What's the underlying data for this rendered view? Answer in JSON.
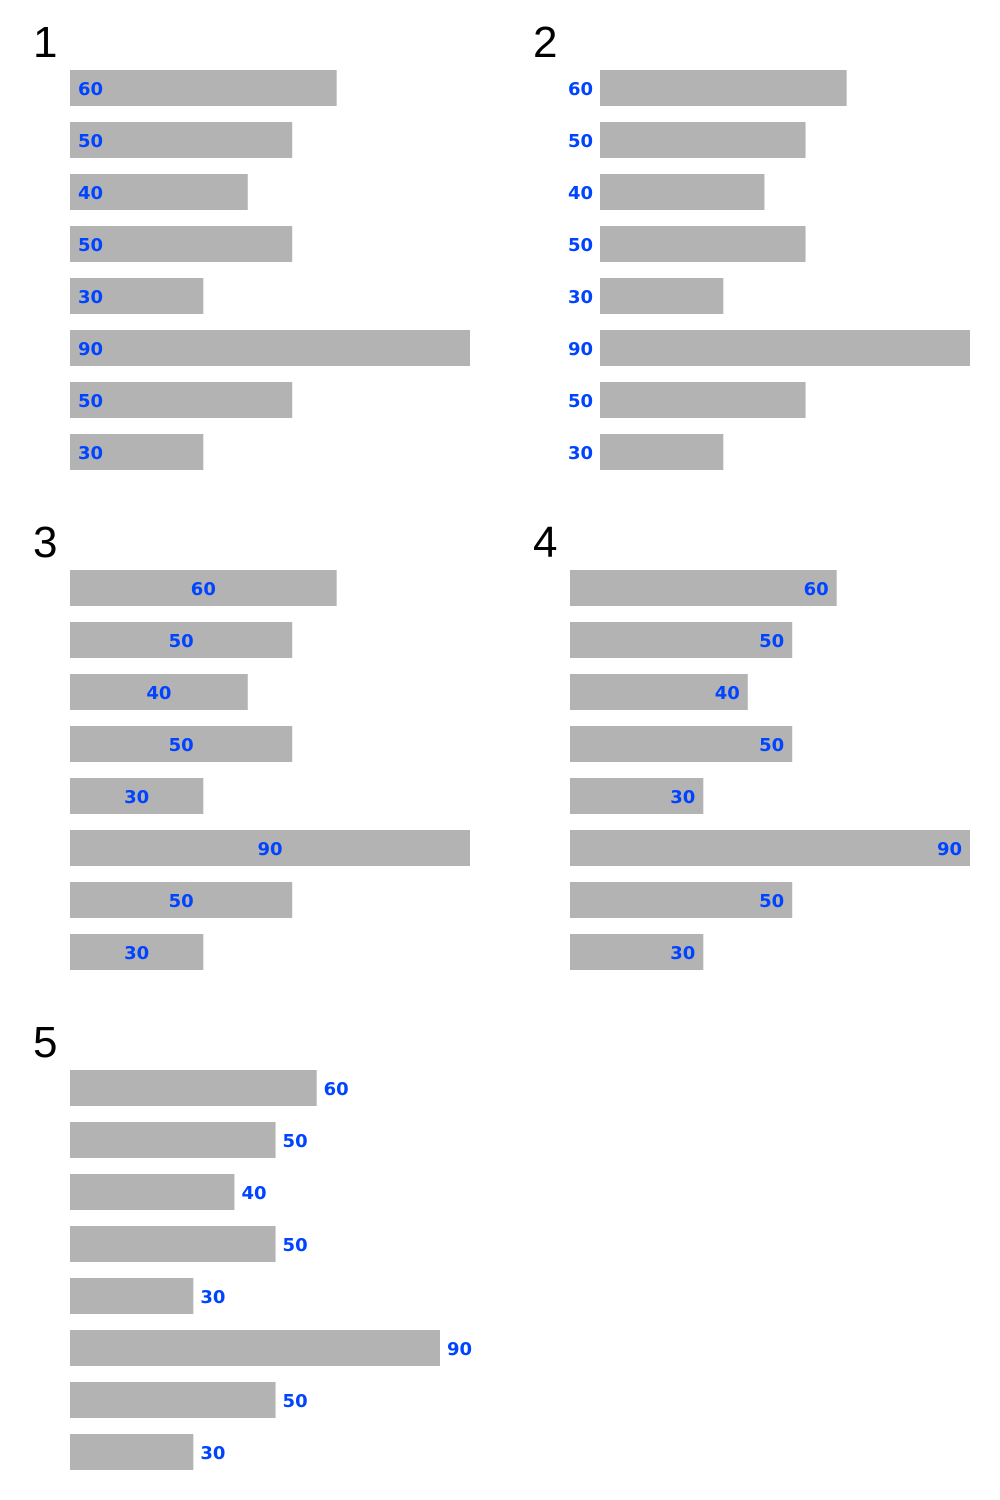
{
  "colors": {
    "bar": "#b3b3b3",
    "label": "#0044ff",
    "title": "#000000"
  },
  "chart_data": [
    {
      "type": "bar",
      "orientation": "horizontal",
      "title": "1",
      "label_position": "inside-start",
      "values": [
        60,
        50,
        40,
        50,
        30,
        90,
        50,
        30
      ]
    },
    {
      "type": "bar",
      "orientation": "horizontal",
      "title": "2",
      "label_position": "outside-start",
      "values": [
        60,
        50,
        40,
        50,
        30,
        90,
        50,
        30
      ]
    },
    {
      "type": "bar",
      "orientation": "horizontal",
      "title": "3",
      "label_position": "center",
      "values": [
        60,
        50,
        40,
        50,
        30,
        90,
        50,
        30
      ]
    },
    {
      "type": "bar",
      "orientation": "horizontal",
      "title": "4",
      "label_position": "inside-end",
      "values": [
        60,
        50,
        40,
        50,
        30,
        90,
        50,
        30
      ]
    },
    {
      "type": "bar",
      "orientation": "horizontal",
      "title": "5",
      "label_position": "outside-end",
      "values": [
        60,
        50,
        40,
        50,
        30,
        90,
        50,
        30
      ]
    }
  ]
}
